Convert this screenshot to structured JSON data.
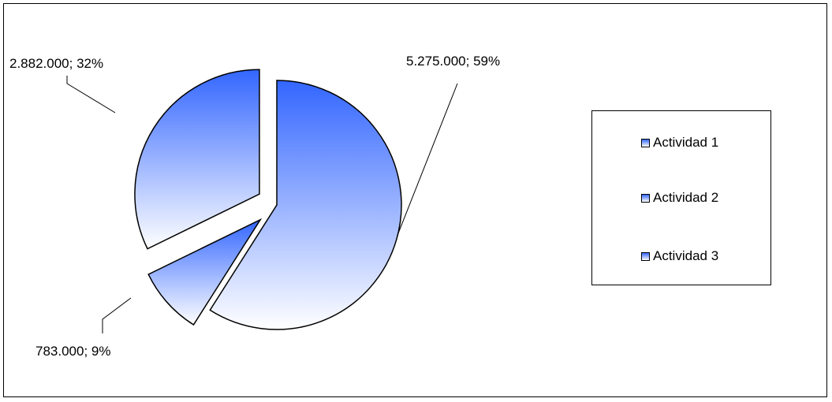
{
  "chart_data": {
    "type": "pie",
    "categories": [
      "Actividad 1",
      "Actividad 2",
      "Actividad 3"
    ],
    "values": [
      5275000,
      783000,
      2882000
    ],
    "percentages": [
      59,
      9,
      32
    ],
    "data_labels": [
      "5.275.000; 59%",
      "783.000; 9%",
      "2.882.000; 32%"
    ],
    "exploded": true,
    "legend_position": "right",
    "colors": {
      "gradient_top": "#3366ff",
      "gradient_bottom": "#ffffff",
      "stroke": "#000000"
    }
  },
  "legend": {
    "items": [
      "Actividad 1",
      "Actividad 2",
      "Actividad 3"
    ]
  }
}
